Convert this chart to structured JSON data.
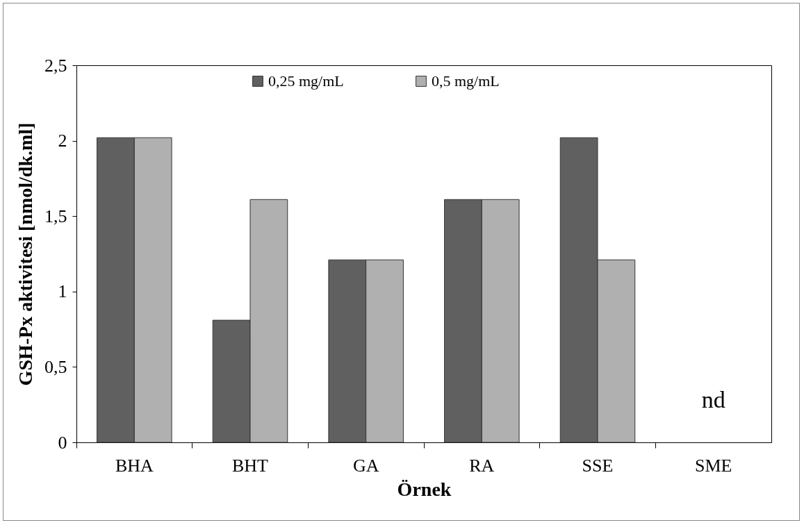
{
  "chart_data": {
    "type": "bar",
    "xlabel": "Örnek",
    "ylabel": "GSH-Px aktivitesi [nmol/dk.ml]",
    "categories": [
      "BHA",
      "BHT",
      "GA",
      "RA",
      "SSE",
      "SME"
    ],
    "series": [
      {
        "name": "0,25 mg/mL",
        "color": "#606060",
        "values": [
          2.02,
          0.81,
          1.21,
          1.61,
          2.02,
          null
        ]
      },
      {
        "name": "0,5 mg/mL",
        "color": "#b0b0b0",
        "values": [
          2.02,
          1.61,
          1.21,
          1.61,
          1.21,
          null
        ]
      }
    ],
    "ylim": [
      0,
      2.5
    ],
    "yticks": [
      0,
      {
        "value": 0.5,
        "label": "0,5"
      },
      1,
      {
        "value": 1.5,
        "label": "1,5"
      },
      2,
      {
        "value": 2.5,
        "label": "2,5"
      }
    ],
    "annotations": [
      "nd"
    ],
    "grid": false,
    "legend": "top"
  }
}
